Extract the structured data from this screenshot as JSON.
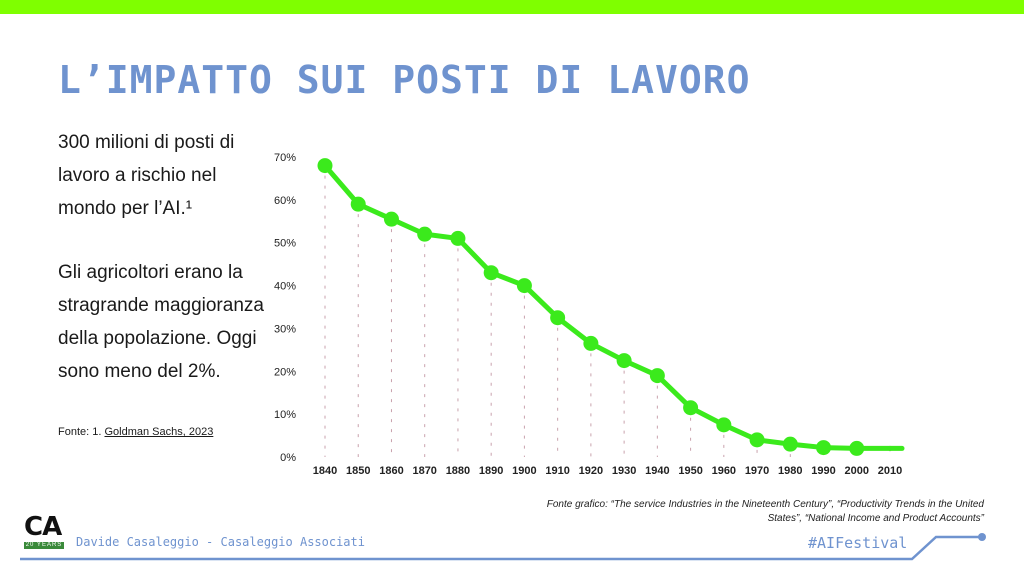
{
  "colors": {
    "accent_bar": "#7fff00",
    "title": "#6f93cf",
    "line": "#3bea1c",
    "footer_blue": "#6f93cf",
    "grid_dash": "#c9a2ad"
  },
  "slide": {
    "title": "L’IMPATTO SUI POSTI DI LAVORO",
    "paragraph_1": "300 milioni di posti di lavoro a rischio nel mondo per l’AI.¹",
    "paragraph_2": "Gli agricoltori erano la stragrande maggioranza della popolazione. Oggi sono meno del 2%.",
    "source_prefix": "Fonte: 1. ",
    "source_link": "Goldman Sachs, 2023",
    "chart_source": "Fonte grafico: “The service Industries in the Nineteenth Century”, “Productivity Trends in the United States”,  “National Income and Product Accounts”"
  },
  "footer": {
    "logo_text": "CA",
    "logo_subtext": "20 YEARS",
    "author": "Davide Casaleggio - Casaleggio Associati",
    "hashtag": "#AIFestival",
    "logo_icon": "ca-logo-icon"
  },
  "chart_data": {
    "type": "line",
    "title": "",
    "xlabel": "",
    "ylabel": "",
    "categories": [
      "1840",
      "1850",
      "1860",
      "1870",
      "1880",
      "1890",
      "1900",
      "1910",
      "1920",
      "1930",
      "1940",
      "1950",
      "1960",
      "1970",
      "1980",
      "1990",
      "2000",
      "2010"
    ],
    "series": [
      {
        "values": [
          68,
          59,
          55.5,
          52,
          51,
          43,
          40,
          32.5,
          26.5,
          22.5,
          19,
          11.5,
          7.5,
          4,
          3,
          2.2,
          2,
          2
        ]
      }
    ],
    "y_ticks": [
      "0%",
      "10%",
      "20%",
      "30%",
      "40%",
      "50%",
      "60%",
      "70%"
    ],
    "ylim": [
      0,
      70
    ],
    "grid": false,
    "legend": "none"
  }
}
